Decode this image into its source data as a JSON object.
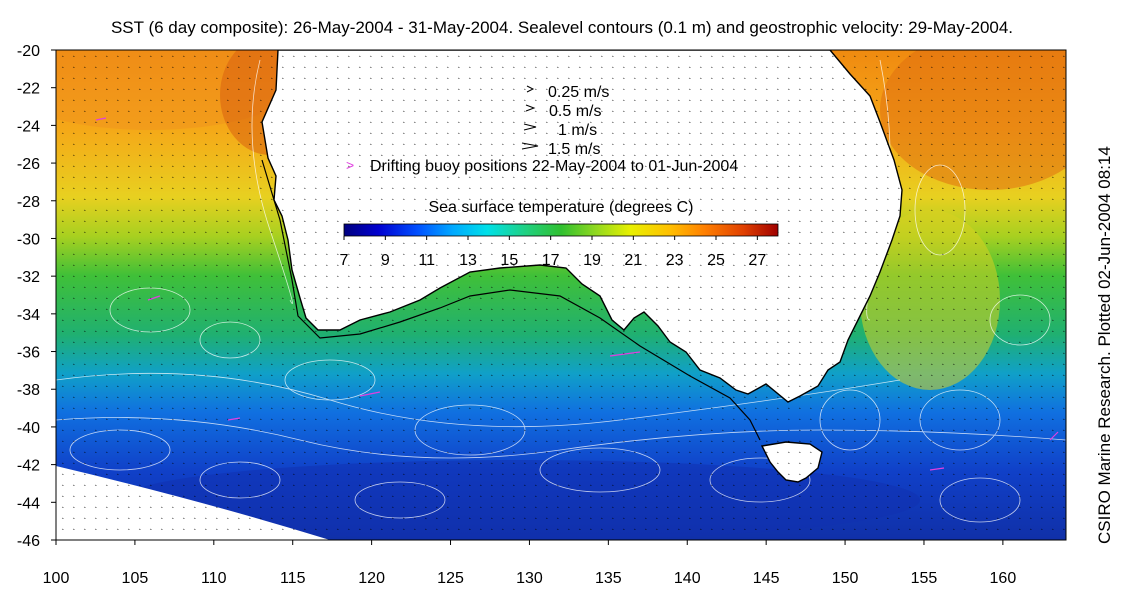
{
  "title": "SST (6 day composite): 26-May-2004 - 31-May-2004. Sealevel contours (0.1 m) and geostrophic velocity: 29-May-2004.",
  "side_label": "CSIRO Marine Research. Plotted 02-Jun-2004 08:14",
  "velocity_legend": [
    {
      "label": "0.25 m/s",
      "speed": 0.25
    },
    {
      "label": "0.5 m/s",
      "speed": 0.5
    },
    {
      "label": "1 m/s",
      "speed": 1
    },
    {
      "label": "1.5 m/s",
      "speed": 1.5
    }
  ],
  "buoy_legend": {
    "symbol": ">",
    "label": "Drifting buoy positions 22-May-2004 to 01-Jun-2004",
    "color": "#e040e0"
  },
  "colorbar": {
    "title": "Sea surface temperature (degrees C)",
    "min": 7,
    "max": 28,
    "ticks": [
      "7",
      "9",
      "11",
      "13",
      "15",
      "17",
      "19",
      "21",
      "23",
      "25",
      "27"
    ],
    "colors": [
      "#00007f",
      "#0000d0",
      "#0050ff",
      "#00a8ff",
      "#00e0e8",
      "#20d080",
      "#30c030",
      "#90d820",
      "#e8f000",
      "#ffc000",
      "#ff8000",
      "#e04000",
      "#a00000"
    ]
  },
  "axes": {
    "lon_min": 100,
    "lon_max": 164,
    "lat_min": -46,
    "lat_max": -20,
    "x_ticks": [
      "100",
      "105",
      "110",
      "115",
      "120",
      "125",
      "130",
      "135",
      "140",
      "145",
      "150",
      "155",
      "160"
    ],
    "y_ticks": [
      "-20",
      "-22",
      "-24",
      "-26",
      "-28",
      "-30",
      "-32",
      "-34",
      "-36",
      "-38",
      "-40",
      "-42",
      "-44",
      "-46"
    ]
  },
  "colors": {
    "land": "#ffffff",
    "coast": "#000000",
    "contour": "#ffffff",
    "shelf_line": "#000000"
  }
}
